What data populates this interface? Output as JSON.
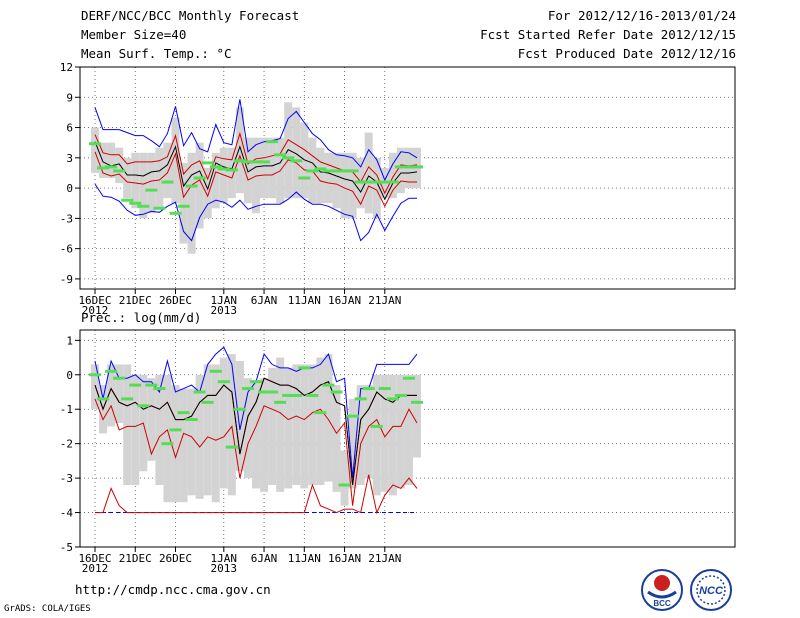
{
  "header": {
    "title": "DERF/NCC/BCC Monthly Forecast",
    "member_size": "Member Size=40",
    "variable": "Mean Surf. Temp.: °C",
    "period": "For 2012/12/16-2013/01/24",
    "started": "Fcst Started Refer Date 2012/12/15",
    "produced": "Fcst Produced Date 2012/12/16"
  },
  "footer": {
    "url": "http://cmdp.ncc.cma.gov.cn",
    "credit": "GrADS: COLA/IGES",
    "logo_left_text": "BCC",
    "logo_right_text": "NCC"
  },
  "colors": {
    "envelope": "#0000ff",
    "quartile": "#d00000",
    "median": "#000000",
    "box": "#d3d3d3",
    "observed": "#55dd55"
  },
  "chart_data": [
    {
      "type": "box-plot ensemble forecast",
      "title": "Mean Surf. Temp.: °C",
      "xlabel": "",
      "ylabel": "°C",
      "ylim": [
        -10,
        12
      ],
      "yticks": [
        12,
        9,
        6,
        3,
        0,
        -3,
        -6,
        -9
      ],
      "xticks": [
        {
          "day": 0,
          "label": "16DEC",
          "sub": "2012"
        },
        {
          "day": 5,
          "label": "21DEC",
          "sub": ""
        },
        {
          "day": 10,
          "label": "26DEC",
          "sub": ""
        },
        {
          "day": 16,
          "label": "1JAN",
          "sub": "2013"
        },
        {
          "day": 21,
          "label": "6JAN",
          "sub": ""
        },
        {
          "day": 26,
          "label": "11JAN",
          "sub": ""
        },
        {
          "day": 31,
          "label": "16JAN",
          "sub": ""
        },
        {
          "day": 36,
          "label": "21JAN",
          "sub": ""
        }
      ],
      "box_low": [
        1.5,
        1.0,
        1.0,
        0.5,
        -1.0,
        -2.0,
        -3.0,
        -2.5,
        -2.0,
        -1.0,
        -1.5,
        -5.5,
        -6.5,
        -4.0,
        -3.0,
        -2.0,
        -1.5,
        -1.0,
        -0.5,
        -1.5,
        -2.5,
        -1.0,
        -1.0,
        -1.5,
        -1.0,
        -1.0,
        -1.0,
        -1.5,
        -1.5,
        -1.5,
        -2.0,
        -3.0,
        -3.0,
        -2.0,
        -2.5,
        -3.0,
        -1.0,
        -1.0,
        -0.5,
        0.0,
        0.0
      ],
      "box_high": [
        6.0,
        4.5,
        4.5,
        4.0,
        3.0,
        3.5,
        3.5,
        3.5,
        4.0,
        4.5,
        7.0,
        2.5,
        3.5,
        4.5,
        2.0,
        3.5,
        4.0,
        4.0,
        8.0,
        5.0,
        5.0,
        5.0,
        5.0,
        5.0,
        8.5,
        8.0,
        6.5,
        5.0,
        4.0,
        3.5,
        3.5,
        3.5,
        3.5,
        3.0,
        5.5,
        3.0,
        2.0,
        3.5,
        4.0,
        4.0,
        4.0
      ],
      "envelope_max": [
        8.0,
        5.8,
        5.8,
        5.8,
        5.5,
        5.2,
        5.2,
        4.7,
        4.1,
        5.4,
        8.1,
        4.2,
        5.5,
        3.9,
        3.6,
        6.3,
        4.5,
        4.3,
        8.8,
        3.6,
        4.3,
        4.6,
        4.7,
        4.9,
        6.9,
        7.6,
        6.5,
        5.4,
        4.8,
        3.8,
        3.3,
        3.2,
        3.0,
        2.1,
        3.8,
        2.8,
        0.8,
        2.4,
        3.6,
        3.5,
        3.0
      ],
      "q_upper": [
        5.3,
        3.5,
        3.3,
        3.3,
        2.4,
        2.6,
        2.6,
        2.6,
        2.7,
        3.1,
        5.2,
        1.4,
        2.3,
        2.7,
        0.9,
        3.1,
        2.9,
        2.8,
        5.4,
        2.4,
        2.9,
        3.0,
        3.2,
        3.4,
        4.8,
        4.3,
        3.8,
        3.2,
        2.6,
        2.3,
        2.0,
        1.7,
        1.6,
        0.6,
        2.1,
        1.3,
        -0.5,
        1.1,
        2.3,
        2.2,
        2.3
      ],
      "median": [
        4.6,
        2.6,
        2.2,
        2.4,
        1.3,
        1.3,
        1.2,
        1.6,
        1.7,
        2.3,
        4.1,
        0.2,
        1.3,
        1.7,
        -0.1,
        2.5,
        2.1,
        1.9,
        4.1,
        1.6,
        2.1,
        2.2,
        2.2,
        2.5,
        3.8,
        3.4,
        2.8,
        2.5,
        1.6,
        1.5,
        1.2,
        0.9,
        0.7,
        -0.4,
        1.2,
        0.6,
        -1.1,
        0.5,
        1.5,
        1.5,
        1.6
      ],
      "q_lower": [
        3.6,
        1.5,
        1.2,
        1.4,
        0.6,
        0.5,
        0.4,
        0.7,
        0.8,
        1.5,
        3.4,
        -0.9,
        0.3,
        0.8,
        -0.8,
        1.6,
        1.3,
        1.0,
        3.2,
        0.8,
        1.2,
        1.3,
        1.3,
        1.7,
        2.8,
        2.5,
        1.8,
        1.7,
        0.7,
        0.5,
        0.4,
        0.0,
        -0.3,
        -1.6,
        0.2,
        -0.2,
        -1.8,
        -0.2,
        0.7,
        0.6,
        0.6
      ],
      "envelope_min": [
        0.4,
        -0.8,
        -0.9,
        -1.3,
        -2.2,
        -2.7,
        -2.6,
        -2.3,
        -2.4,
        -1.8,
        -1.4,
        -4.3,
        -5.2,
        -2.9,
        -1.6,
        -1.2,
        -1.4,
        -1.9,
        -1.2,
        -2.1,
        -1.8,
        -1.6,
        -1.6,
        -1.6,
        -1.1,
        -0.4,
        -1.1,
        -1.6,
        -1.6,
        -1.8,
        -2.2,
        -2.6,
        -2.8,
        -5.2,
        -4.4,
        -2.6,
        -4.2,
        -2.8,
        -1.5,
        -1.0,
        -1.0
      ],
      "observed": [
        4.4,
        2.0,
        2.1,
        1.7,
        -1.2,
        -1.5,
        -1.8,
        -0.2,
        -2.0,
        0.6,
        -2.5,
        -1.8,
        0.2,
        1.0,
        2.5,
        2.1,
        1.9,
        1.8,
        2.7,
        2.6,
        2.6,
        2.6,
        4.6,
        3.3,
        3.0,
        2.7,
        1.0,
        1.7,
        1.9,
        1.7,
        1.7,
        1.7,
        1.7,
        0.6,
        0.6,
        0.6,
        0.6,
        0.6,
        2.1,
        2.1,
        2.1
      ]
    },
    {
      "type": "box-plot ensemble forecast",
      "title": "Prec.: log(mm/d)",
      "xlabel": "",
      "ylabel": "log(mm/d)",
      "ylim": [
        -5,
        1.3
      ],
      "yticks": [
        1,
        0,
        -1,
        -2,
        -3,
        -4,
        -5
      ],
      "xticks": [
        {
          "day": 0,
          "label": "16DEC",
          "sub": "2012"
        },
        {
          "day": 5,
          "label": "21DEC",
          "sub": ""
        },
        {
          "day": 10,
          "label": "26DEC",
          "sub": ""
        },
        {
          "day": 16,
          "label": "1JAN",
          "sub": "2013"
        },
        {
          "day": 21,
          "label": "6JAN",
          "sub": ""
        },
        {
          "day": 26,
          "label": "11JAN",
          "sub": ""
        },
        {
          "day": 31,
          "label": "16JAN",
          "sub": ""
        },
        {
          "day": 36,
          "label": "21JAN",
          "sub": ""
        }
      ],
      "box_low": [
        -1.0,
        -1.7,
        -1.5,
        -1.4,
        -3.2,
        -3.2,
        -2.8,
        -2.5,
        -3.2,
        -3.7,
        -3.7,
        -3.7,
        -3.5,
        -3.6,
        -3.5,
        -3.7,
        -3.3,
        -3.5,
        -2.8,
        -3.0,
        -3.3,
        -3.4,
        -3.2,
        -3.4,
        -3.3,
        -3.2,
        -3.3,
        -3.2,
        -3.2,
        -3.1,
        -3.4,
        -3.8,
        -3.3,
        -3.2,
        -3.0,
        -3.5,
        -3.4,
        -3.5,
        -3.3,
        -3.2,
        -2.4
      ],
      "box_high": [
        0.3,
        -0.3,
        0.3,
        0.3,
        0.3,
        0.0,
        0.0,
        -0.1,
        0.0,
        0.0,
        -0.3,
        -0.4,
        -0.4,
        0.0,
        0.3,
        0.3,
        0.5,
        0.6,
        0.4,
        -0.1,
        -0.2,
        -0.1,
        0.2,
        0.5,
        0.2,
        0.3,
        0.3,
        0.3,
        0.5,
        0.6,
        -0.3,
        -2.2,
        -0.7,
        -0.3,
        -0.3,
        0.0,
        0.0,
        0.0,
        0.0,
        0.0,
        0.0
      ],
      "envelope_max": [
        0.4,
        -0.7,
        0.4,
        -0.1,
        -0.1,
        0.0,
        -0.2,
        -0.2,
        -0.5,
        0.4,
        -0.5,
        -0.4,
        -0.3,
        -0.5,
        0.3,
        0.6,
        0.8,
        0.3,
        -1.6,
        -0.5,
        -0.2,
        0.6,
        0.3,
        0.2,
        0.2,
        0.1,
        0.2,
        0.2,
        0.3,
        0.6,
        -0.2,
        -0.1,
        -3.0,
        -0.4,
        -0.4,
        0.3,
        0.3,
        0.3,
        0.3,
        0.3,
        0.6
      ],
      "q_upper": [
        -0.3,
        -1.0,
        -0.4,
        -0.8,
        -0.9,
        -0.8,
        -1.0,
        -0.9,
        -1.0,
        -0.8,
        -1.3,
        -1.3,
        -1.2,
        -0.8,
        -0.6,
        -0.6,
        -0.3,
        -0.5,
        -2.3,
        -1.2,
        -0.8,
        -0.1,
        -0.2,
        -0.3,
        -0.3,
        -0.4,
        -0.6,
        -0.5,
        -0.3,
        -0.2,
        -0.8,
        -0.9,
        -3.2,
        -1.3,
        -1.0,
        -0.5,
        -0.7,
        -0.8,
        -0.6,
        -0.6,
        -0.6
      ],
      "median": [
        -0.3,
        -1.0,
        -0.4,
        -0.8,
        -0.9,
        -0.8,
        -1.0,
        -0.9,
        -1.0,
        -0.8,
        -1.3,
        -1.3,
        -1.2,
        -0.8,
        -0.6,
        -0.6,
        -0.3,
        -0.5,
        -2.3,
        -1.2,
        -0.8,
        -0.1,
        -0.2,
        -0.3,
        -0.3,
        -0.4,
        -0.6,
        -0.5,
        -0.3,
        -0.2,
        -0.8,
        -0.9,
        -3.2,
        -1.3,
        -1.0,
        -0.5,
        -0.7,
        -0.8,
        -0.6,
        -0.6,
        -0.6
      ],
      "q_lower": [
        -0.7,
        -1.3,
        -0.9,
        -1.6,
        -1.5,
        -1.5,
        -1.4,
        -2.3,
        -1.8,
        -1.6,
        -2.4,
        -1.7,
        -1.8,
        -2.1,
        -1.8,
        -1.9,
        -1.8,
        -1.5,
        -3.0,
        -2.0,
        -1.5,
        -0.9,
        -1.0,
        -1.1,
        -1.3,
        -1.2,
        -1.3,
        -1.1,
        -1.0,
        -1.3,
        -1.7,
        -1.4,
        -3.8,
        -2.0,
        -1.5,
        -1.3,
        -1.8,
        -1.5,
        -1.5,
        -1.0,
        -1.4
      ],
      "envelope_min": [
        -4.0,
        -4.0,
        -3.3,
        -3.8,
        -4.0,
        -4.0,
        -4.0,
        -4.0,
        -4.0,
        -4.0,
        -4.0,
        -4.0,
        -4.0,
        -4.0,
        -4.0,
        -4.0,
        -4.0,
        -4.0,
        -4.0,
        -4.0,
        -4.0,
        -4.0,
        -4.0,
        -4.0,
        -4.0,
        -4.0,
        -4.0,
        -3.2,
        -3.8,
        -3.9,
        -4.0,
        -3.9,
        -3.9,
        -4.0,
        -2.9,
        -4.0,
        -3.5,
        -3.2,
        -3.3,
        -3.0,
        -3.3
      ],
      "observed": [
        0.0,
        -0.7,
        0.1,
        -0.1,
        -0.7,
        -0.3,
        -0.9,
        -0.3,
        -0.4,
        -2.0,
        -1.6,
        -1.1,
        -1.3,
        -0.5,
        -0.8,
        0.1,
        -0.2,
        -2.1,
        -1.0,
        -0.4,
        -0.2,
        -0.5,
        -0.5,
        -0.8,
        -0.6,
        -0.6,
        0.2,
        -0.6,
        -1.1,
        -0.3,
        -0.5,
        -3.2,
        -1.2,
        -0.7,
        -0.4,
        -1.5,
        -0.4,
        -0.7,
        -0.6,
        -0.1,
        -0.8
      ]
    }
  ]
}
